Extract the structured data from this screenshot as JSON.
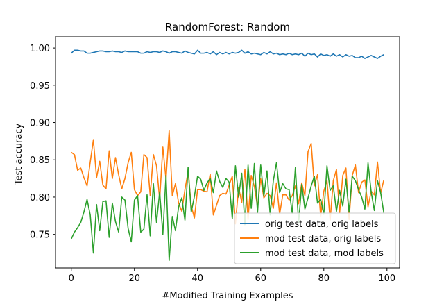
{
  "chart_data": {
    "type": "line",
    "title": "RandomForest: Random",
    "xlabel": "#Modified Training Examples",
    "ylabel": "Test accuracy",
    "xlim": [
      -5,
      104
    ],
    "ylim": [
      0.705,
      1.015
    ],
    "xticks": [
      0,
      20,
      40,
      60,
      80,
      100
    ],
    "xtick_labels": [
      "0",
      "20",
      "40",
      "60",
      "80",
      "100"
    ],
    "yticks": [
      0.75,
      0.8,
      0.85,
      0.9,
      0.95,
      1.0
    ],
    "ytick_labels": [
      "0.75",
      "0.80",
      "0.85",
      "0.90",
      "0.95",
      "1.00"
    ],
    "grid": false,
    "legend_position": "lower-right",
    "x": [
      0,
      1,
      2,
      3,
      4,
      5,
      6,
      7,
      8,
      9,
      10,
      11,
      12,
      13,
      14,
      15,
      16,
      17,
      18,
      19,
      20,
      21,
      22,
      23,
      24,
      25,
      26,
      27,
      28,
      29,
      30,
      31,
      32,
      33,
      34,
      35,
      36,
      37,
      38,
      39,
      40,
      41,
      42,
      43,
      44,
      45,
      46,
      47,
      48,
      49,
      50,
      51,
      52,
      53,
      54,
      55,
      56,
      57,
      58,
      59,
      60,
      61,
      62,
      63,
      64,
      65,
      66,
      67,
      68,
      69,
      70,
      71,
      72,
      73,
      74,
      75,
      76,
      77,
      78,
      79,
      80,
      81,
      82,
      83,
      84,
      85,
      86,
      87,
      88,
      89,
      90,
      91,
      92,
      93,
      94,
      95,
      96,
      97,
      98,
      99
    ],
    "series": [
      {
        "name": "orig test data, orig labels",
        "color": "#1f77b4",
        "values": [
          0.993,
          0.997,
          0.997,
          0.996,
          0.996,
          0.993,
          0.993,
          0.994,
          0.995,
          0.996,
          0.996,
          0.995,
          0.995,
          0.996,
          0.995,
          0.995,
          0.994,
          0.996,
          0.995,
          0.995,
          0.995,
          0.995,
          0.993,
          0.993,
          0.995,
          0.994,
          0.995,
          0.995,
          0.994,
          0.996,
          0.995,
          0.993,
          0.995,
          0.995,
          0.994,
          0.993,
          0.996,
          0.994,
          0.993,
          0.992,
          0.997,
          0.993,
          0.993,
          0.994,
          0.992,
          0.995,
          0.991,
          0.994,
          0.992,
          0.994,
          0.992,
          0.994,
          0.993,
          0.994,
          0.997,
          0.993,
          0.995,
          0.992,
          0.993,
          0.992,
          0.991,
          0.994,
          0.992,
          0.995,
          0.992,
          0.993,
          0.991,
          0.992,
          0.991,
          0.993,
          0.991,
          0.992,
          0.991,
          0.993,
          0.989,
          0.993,
          0.991,
          0.992,
          0.988,
          0.992,
          0.99,
          0.991,
          0.989,
          0.992,
          0.989,
          0.991,
          0.988,
          0.991,
          0.989,
          0.99,
          0.987,
          0.987,
          0.989,
          0.986,
          0.988,
          0.99,
          0.988,
          0.986,
          0.989,
          0.991
        ]
      },
      {
        "name": "mod test data, orig labels",
        "color": "#ff7f0e",
        "values": [
          0.86,
          0.857,
          0.836,
          0.839,
          0.826,
          0.815,
          0.847,
          0.877,
          0.826,
          0.848,
          0.816,
          0.811,
          0.862,
          0.825,
          0.853,
          0.83,
          0.811,
          0.825,
          0.846,
          0.86,
          0.81,
          0.802,
          0.807,
          0.857,
          0.853,
          0.802,
          0.857,
          0.842,
          0.797,
          0.867,
          0.824,
          0.889,
          0.802,
          0.818,
          0.792,
          0.781,
          0.81,
          0.834,
          0.788,
          0.772,
          0.81,
          0.81,
          0.808,
          0.807,
          0.831,
          0.776,
          0.789,
          0.802,
          0.805,
          0.804,
          0.816,
          0.828,
          0.764,
          0.813,
          0.793,
          0.837,
          0.77,
          0.829,
          0.814,
          0.787,
          0.825,
          0.799,
          0.805,
          0.802,
          0.785,
          0.819,
          0.777,
          0.803,
          0.803,
          0.796,
          0.802,
          0.815,
          0.791,
          0.819,
          0.802,
          0.861,
          0.872,
          0.815,
          0.83,
          0.774,
          0.808,
          0.822,
          0.769,
          0.822,
          0.837,
          0.779,
          0.829,
          0.839,
          0.77,
          0.829,
          0.843,
          0.806,
          0.82,
          0.823,
          0.787,
          0.808,
          0.803,
          0.847,
          0.805,
          0.823
        ]
      },
      {
        "name": "mod test data, mod labels",
        "color": "#2ca02c",
        "values": [
          0.744,
          0.753,
          0.759,
          0.766,
          0.78,
          0.797,
          0.776,
          0.725,
          0.79,
          0.755,
          0.794,
          0.795,
          0.746,
          0.792,
          0.767,
          0.753,
          0.8,
          0.796,
          0.758,
          0.74,
          0.796,
          0.802,
          0.753,
          0.757,
          0.803,
          0.748,
          0.818,
          0.766,
          0.807,
          0.75,
          0.829,
          0.715,
          0.774,
          0.755,
          0.787,
          0.799,
          0.769,
          0.84,
          0.78,
          0.801,
          0.828,
          0.824,
          0.809,
          0.819,
          0.825,
          0.806,
          0.835,
          0.821,
          0.813,
          0.825,
          0.82,
          0.771,
          0.842,
          0.8,
          0.832,
          0.763,
          0.843,
          0.785,
          0.845,
          0.779,
          0.843,
          0.801,
          0.835,
          0.776,
          0.822,
          0.846,
          0.806,
          0.818,
          0.811,
          0.81,
          0.778,
          0.84,
          0.765,
          0.817,
          0.784,
          0.799,
          0.815,
          0.828,
          0.792,
          0.797,
          0.777,
          0.842,
          0.809,
          0.815,
          0.781,
          0.809,
          0.788,
          0.824,
          0.78,
          0.828,
          0.822,
          0.81,
          0.8,
          0.784,
          0.846,
          0.807,
          0.782,
          0.822,
          0.806,
          0.779
        ]
      }
    ]
  }
}
